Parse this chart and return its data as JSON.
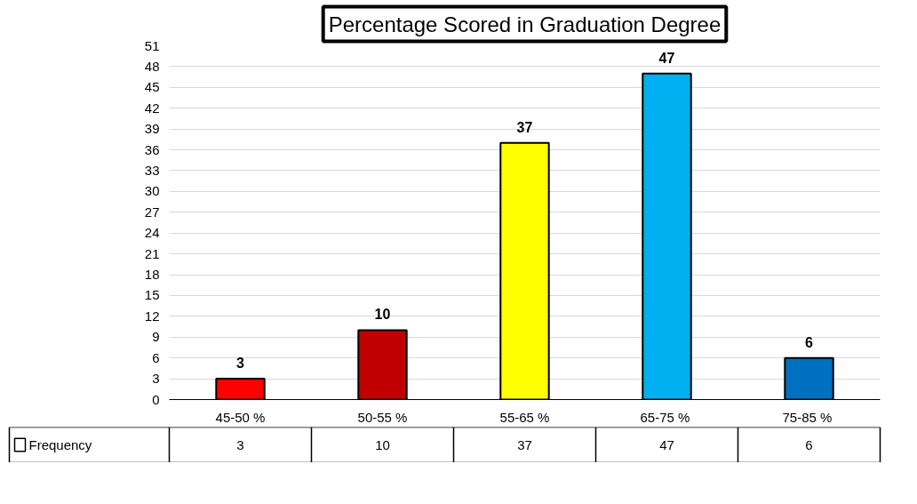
{
  "chart_data": {
    "type": "bar",
    "title": "Percentage Scored in Graduation Degree",
    "categories": [
      "45-50 %",
      "50-55 %",
      "55-65 %",
      "65-75  %",
      "75-85  %"
    ],
    "series": [
      {
        "name": "Frequency",
        "colors": [
          "#ff0000",
          "#c00000",
          "#ffff00",
          "#00b0f0",
          "#0070c0"
        ],
        "values": [
          3,
          10,
          37,
          47,
          6
        ]
      }
    ],
    "ylim": [
      0,
      51
    ],
    "yticks": [
      0,
      3,
      6,
      9,
      12,
      15,
      18,
      21,
      24,
      27,
      30,
      33,
      36,
      39,
      42,
      45,
      48,
      51
    ],
    "annotations": [
      "3",
      "10",
      "37",
      "47",
      "6"
    ],
    "grid": "y",
    "data_labels": true,
    "legend": "bottom"
  }
}
